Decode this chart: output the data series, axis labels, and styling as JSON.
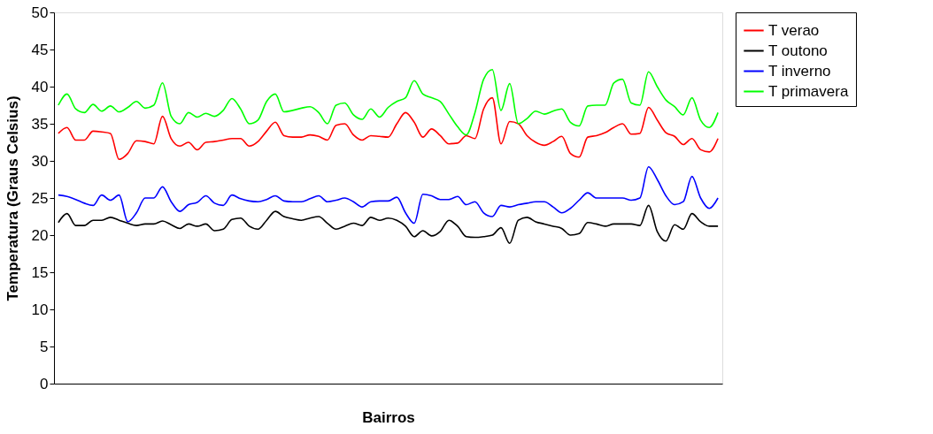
{
  "chart_data": {
    "type": "line",
    "xlabel": "Bairros",
    "ylabel": "Temperatura (Graus Celsius)",
    "categories": [
      null,
      null,
      null,
      null,
      null,
      null,
      null,
      null,
      null,
      null,
      null,
      null,
      null,
      null,
      null,
      null,
      null,
      null,
      null,
      null,
      null,
      null,
      null,
      null,
      null,
      null,
      null,
      null,
      null,
      null,
      null,
      null,
      null,
      null,
      null,
      null,
      null,
      null,
      null,
      null,
      null,
      null,
      null,
      null,
      null,
      null,
      null,
      null,
      null,
      null,
      null,
      null,
      null,
      null,
      null,
      null,
      null,
      null,
      null,
      null,
      null,
      null,
      null,
      null,
      null,
      null,
      null,
      null,
      null,
      null,
      null,
      null,
      null,
      null,
      null,
      null,
      null
    ],
    "series": [
      {
        "name": "T verao",
        "color": "#ff0000",
        "values": [
          33.7,
          34.5,
          32.8,
          32.8,
          34,
          33.9,
          33.7,
          30.2,
          31,
          32.7,
          32.6,
          32.3,
          36,
          33,
          32,
          32.5,
          31.5,
          32.5,
          32.6,
          32.8,
          33,
          33,
          32,
          32.6,
          34,
          35.2,
          33.4,
          33.2,
          33.2,
          33.5,
          33.3,
          32.8,
          34.8,
          35,
          33.5,
          32.8,
          33.4,
          33.3,
          33.2,
          35,
          36.5,
          35.2,
          33.2,
          34.3,
          33.4,
          32.3,
          32.4,
          33.4,
          33,
          37,
          38.5,
          32.3,
          35.3,
          35,
          33.4,
          32.5,
          32.1,
          32.6,
          33.3,
          31,
          30.5,
          33.2,
          33.4,
          33.8,
          34.5,
          35,
          33.6,
          33.7,
          37.2,
          35.5,
          33.8,
          33.3,
          32.2,
          33,
          31.5,
          31.2,
          33
        ]
      },
      {
        "name": "T outono",
        "color": "#000000",
        "values": [
          21.7,
          22.9,
          21.3,
          21.3,
          22,
          22,
          22.4,
          22,
          21.6,
          21.3,
          21.5,
          21.5,
          21.9,
          21.4,
          20.9,
          21.5,
          21.2,
          21.5,
          20.6,
          20.8,
          22.1,
          22.3,
          21.2,
          20.8,
          22,
          23.2,
          22.5,
          22.2,
          22,
          22.3,
          22.5,
          21.6,
          20.8,
          21.2,
          21.6,
          21.3,
          22.4,
          22,
          22.3,
          22,
          21.2,
          19.8,
          20.6,
          19.9,
          20.5,
          22,
          21.2,
          19.8,
          19.7,
          19.8,
          20,
          21,
          18.9,
          22,
          22.4,
          21.8,
          21.5,
          21.2,
          20.9,
          20,
          20.2,
          21.7,
          21.5,
          21.2,
          21.5,
          21.5,
          21.5,
          21.3,
          24,
          20.5,
          19.2,
          21.4,
          20.8,
          22.9,
          21.8,
          21.2,
          21.2
        ]
      },
      {
        "name": "T inverno",
        "color": "#0000ff",
        "values": [
          25.4,
          25.2,
          24.8,
          24.3,
          24,
          25.4,
          24.7,
          25.4,
          21.8,
          23,
          25,
          25,
          26.5,
          24.5,
          23.2,
          24.1,
          24.4,
          25.3,
          24.3,
          24,
          25.4,
          24.9,
          24.6,
          24.5,
          24.8,
          25.3,
          24.6,
          24.5,
          24.5,
          24.9,
          25.3,
          24.5,
          24.7,
          25,
          24.5,
          23.8,
          24.5,
          24.6,
          24.6,
          25.1,
          23,
          21.6,
          25.5,
          25.3,
          24.8,
          24.8,
          25.2,
          24.1,
          24.5,
          23,
          22.5,
          24,
          23.8,
          24.1,
          24.3,
          24.5,
          24.5,
          23.8,
          23,
          23.6,
          24.7,
          25.7,
          25,
          25,
          25,
          25,
          24.7,
          25,
          29.2,
          27.5,
          25.3,
          24.1,
          24.5,
          27.9,
          25,
          23.6,
          25
        ]
      },
      {
        "name": "T primavera",
        "color": "#00ff00",
        "values": [
          37.5,
          39,
          37,
          36.5,
          37.6,
          36.7,
          37.4,
          36.6,
          37.2,
          38,
          37.1,
          37.5,
          40.5,
          36,
          35,
          36.5,
          35.9,
          36.4,
          36,
          36.8,
          38.4,
          37,
          35,
          35.5,
          38,
          39,
          36.6,
          36.8,
          37.1,
          37.3,
          36.5,
          35,
          37.5,
          37.8,
          36.2,
          35.6,
          37,
          35.9,
          37.2,
          38,
          38.5,
          40.8,
          39,
          38.5,
          38,
          36.3,
          34.6,
          33.5,
          36.5,
          41,
          42.3,
          36.8,
          40.4,
          35,
          35.7,
          36.7,
          36.3,
          36.7,
          37,
          35.2,
          34.7,
          37.4,
          37.5,
          37.5,
          40.5,
          41,
          37.8,
          37.5,
          42,
          40,
          38.2,
          37.3,
          36.2,
          38.5,
          35.5,
          34.5,
          36.5
        ]
      }
    ],
    "ylim": [
      0,
      50
    ],
    "yticks": [
      0,
      5,
      10,
      15,
      20,
      25,
      30,
      35,
      40,
      45,
      50
    ],
    "grid": false,
    "legend": "right",
    "tick_labels": "y"
  }
}
